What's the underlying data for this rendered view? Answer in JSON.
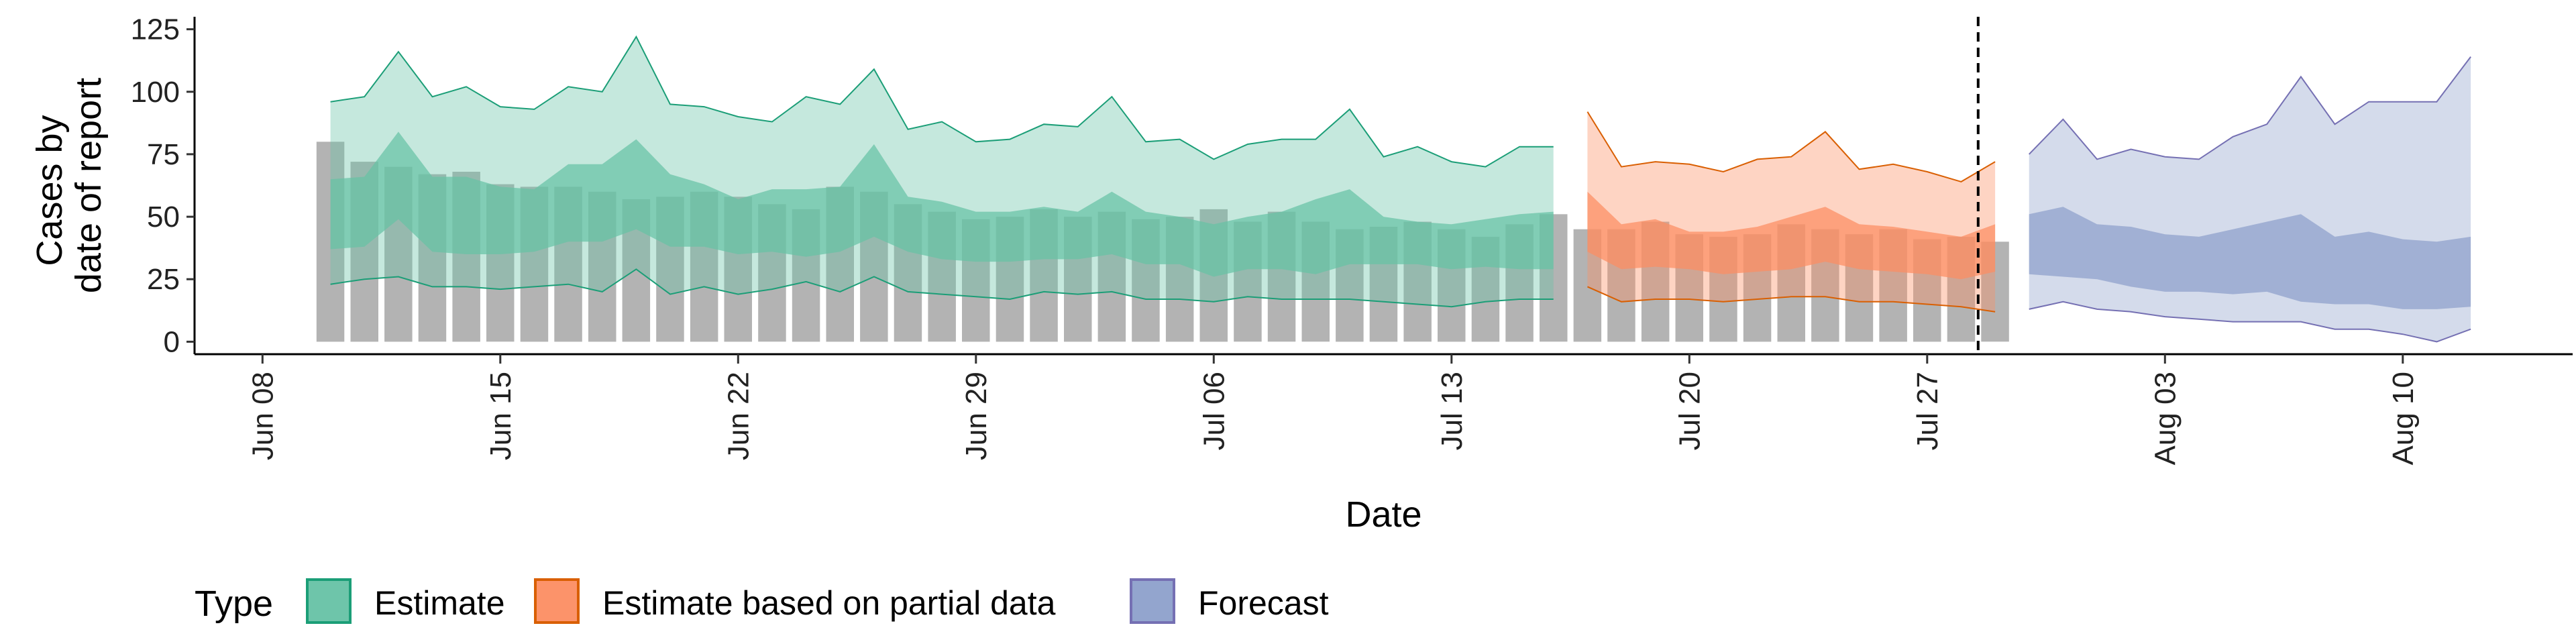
{
  "chart_data": {
    "type": "area",
    "xlabel": "Date",
    "ylabel_lines": [
      "Cases by",
      "date of report"
    ],
    "x_range": [
      "2020-06-06",
      "2020-08-15"
    ],
    "ylim": [
      -5,
      130
    ],
    "y_ticks": [
      0,
      25,
      50,
      75,
      100,
      125
    ],
    "x_ticks": [
      {
        "date": "2020-06-08",
        "label": "Jun 08"
      },
      {
        "date": "2020-06-15",
        "label": "Jun 15"
      },
      {
        "date": "2020-06-22",
        "label": "Jun 22"
      },
      {
        "date": "2020-06-29",
        "label": "Jun 29"
      },
      {
        "date": "2020-07-06",
        "label": "Jul 06"
      },
      {
        "date": "2020-07-13",
        "label": "Jul 13"
      },
      {
        "date": "2020-07-20",
        "label": "Jul 20"
      },
      {
        "date": "2020-07-27",
        "label": "Jul 27"
      },
      {
        "date": "2020-08-03",
        "label": "Aug 03"
      },
      {
        "date": "2020-08-10",
        "label": "Aug 10"
      }
    ],
    "grid": false,
    "reference_line": {
      "date": "2020-07-29",
      "style": "dashed"
    },
    "bars": {
      "color": "#b3b3b3",
      "start_date": "2020-06-10",
      "values": [
        80,
        72,
        70,
        67,
        68,
        63,
        62,
        62,
        60,
        57,
        58,
        60,
        58,
        55,
        53,
        62,
        60,
        55,
        52,
        49,
        50,
        53,
        50,
        52,
        49,
        50,
        53,
        48,
        52,
        48,
        45,
        46,
        48,
        45,
        42,
        47,
        51,
        45,
        45,
        48,
        43,
        42,
        43,
        47,
        45,
        43,
        45,
        41,
        42,
        40
      ]
    },
    "series": [
      {
        "name": "Estimate",
        "color": "#1b9e77",
        "fill": "#66c2a5",
        "start_date": "2020-06-10",
        "outer_upper": [
          96,
          98,
          116,
          98,
          102,
          94,
          93,
          102,
          100,
          122,
          95,
          94,
          90,
          88,
          98,
          95,
          109,
          85,
          88,
          80,
          81,
          87,
          86,
          98,
          80,
          81,
          73,
          79,
          81,
          81,
          93,
          74,
          78,
          72,
          70,
          78,
          78
        ],
        "inner_upper": [
          65,
          66,
          84,
          66,
          66,
          62,
          61,
          71,
          71,
          81,
          67,
          63,
          57,
          61,
          61,
          62,
          79,
          58,
          56,
          52,
          52,
          54,
          52,
          60,
          52,
          50,
          47,
          50,
          52,
          57,
          61,
          50,
          48,
          47,
          49,
          51,
          52
        ],
        "inner_lower": [
          37,
          38,
          49,
          36,
          35,
          35,
          36,
          40,
          40,
          45,
          38,
          38,
          35,
          36,
          34,
          36,
          42,
          36,
          33,
          32,
          32,
          33,
          33,
          35,
          31,
          31,
          26,
          29,
          29,
          27,
          31,
          31,
          31,
          29,
          30,
          29,
          29
        ],
        "outer_lower": [
          23,
          25,
          26,
          22,
          22,
          21,
          22,
          23,
          20,
          29,
          19,
          22,
          19,
          21,
          24,
          20,
          26,
          20,
          19,
          18,
          17,
          20,
          19,
          20,
          17,
          17,
          16,
          18,
          17,
          17,
          17,
          16,
          15,
          14,
          16,
          17,
          17
        ]
      },
      {
        "name": "Estimate based on partial data",
        "color": "#d95f02",
        "fill": "#fc8d62",
        "start_date": "2020-07-17",
        "outer_upper": [
          92,
          70,
          72,
          71,
          68,
          73,
          74,
          84,
          69,
          71,
          68,
          64,
          72
        ],
        "inner_upper": [
          60,
          47,
          49,
          44,
          44,
          46,
          50,
          54,
          47,
          46,
          44,
          42,
          47
        ],
        "inner_lower": [
          36,
          29,
          30,
          29,
          27,
          28,
          29,
          32,
          29,
          28,
          27,
          25,
          28
        ],
        "outer_lower": [
          22,
          16,
          17,
          17,
          16,
          17,
          18,
          18,
          16,
          16,
          15,
          14,
          12
        ]
      },
      {
        "name": "Forecast",
        "color": "#7570b3",
        "fill": "#8da0cb",
        "start_date": "2020-07-30",
        "outer_upper": [
          75,
          89,
          73,
          77,
          74,
          73,
          82,
          87,
          106,
          87,
          96,
          96,
          96,
          114
        ],
        "inner_upper": [
          51,
          54,
          47,
          46,
          43,
          42,
          45,
          48,
          51,
          42,
          44,
          41,
          40,
          42
        ],
        "inner_lower": [
          27,
          26,
          25,
          22,
          20,
          20,
          19,
          20,
          16,
          15,
          15,
          13,
          13,
          14
        ],
        "outer_lower": [
          13,
          16,
          13,
          12,
          10,
          9,
          8,
          8,
          8,
          5,
          5,
          3,
          0,
          5
        ]
      }
    ],
    "legend": {
      "title": "Type",
      "position": "bottom-left",
      "items": [
        "Estimate",
        "Estimate based on partial data",
        "Forecast"
      ]
    }
  }
}
